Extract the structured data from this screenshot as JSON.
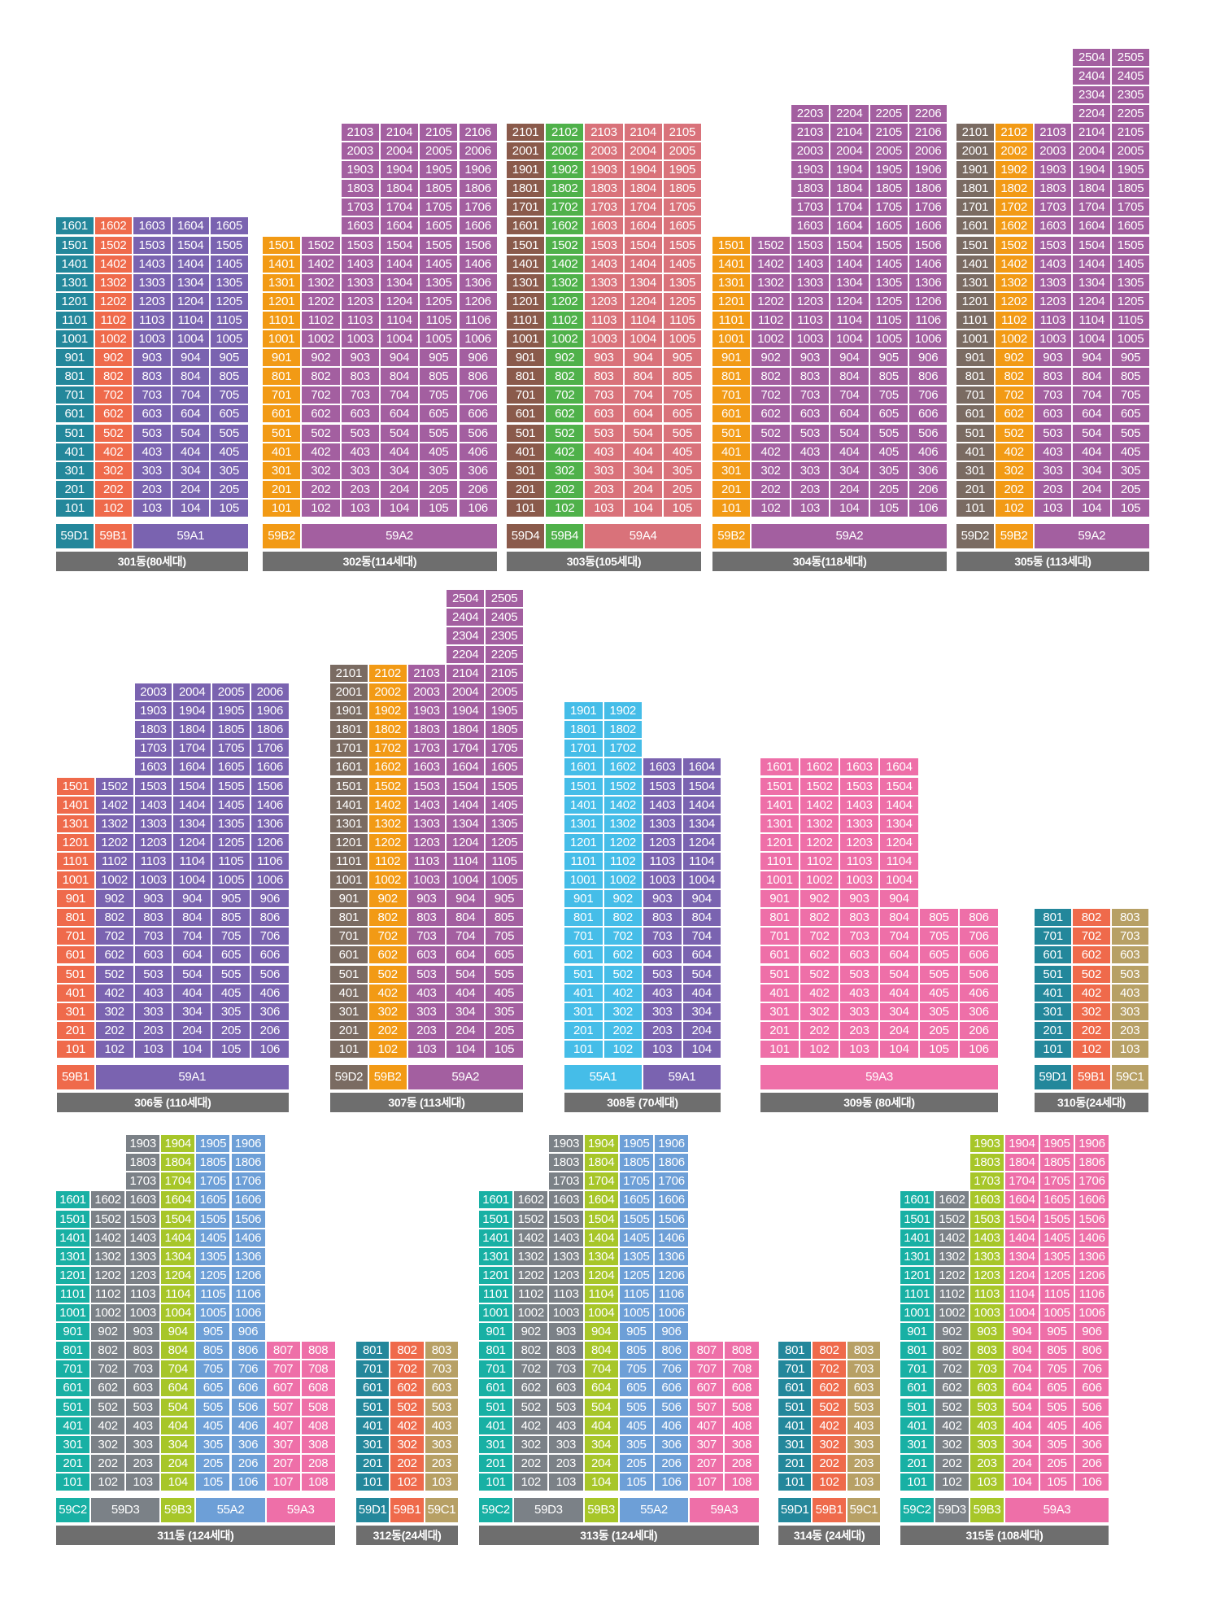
{
  "colors": {
    "59A1": "#7a63b0",
    "59A2": "#a35fa0",
    "59A3": "#ee6fa8",
    "59A4": "#d9727a",
    "59B1": "#ef6a4b",
    "59B2": "#f29a15",
    "59B3": "#a7c629",
    "59B4": "#4fb14a",
    "59C1": "#b7a065",
    "59C2": "#18b0a4",
    "59D1": "#23879b",
    "59D2": "#7a6b62",
    "59D3": "#7b8187",
    "59D4": "#8a5a4b",
    "55A1": "#45bde8",
    "55A2": "#6d9fd7",
    "label_bg": "#6e6e6e"
  },
  "buildings": [
    {
      "name": "301동(80세대)",
      "columns": [
        {
          "line": "01",
          "type": "59D1",
          "top": 16
        },
        {
          "line": "02",
          "type": "59B1",
          "top": 16
        },
        {
          "line": "03",
          "type": "59A1",
          "top": 16
        },
        {
          "line": "04",
          "type": "59A1",
          "top": 16
        },
        {
          "line": "05",
          "type": "59A1",
          "top": 16
        }
      ],
      "types": [
        {
          "name": "59D1",
          "span": 1
        },
        {
          "name": "59B1",
          "span": 1
        },
        {
          "name": "59A1",
          "span": 3
        }
      ]
    },
    {
      "name": "302동(114세대)",
      "columns": [
        {
          "line": "01",
          "type": "59B2",
          "top": 15
        },
        {
          "line": "02",
          "type": "59A2",
          "top": 15
        },
        {
          "line": "03",
          "type": "59A2",
          "top": 21
        },
        {
          "line": "04",
          "type": "59A2",
          "top": 21
        },
        {
          "line": "05",
          "type": "59A2",
          "top": 21
        },
        {
          "line": "06",
          "type": "59A2",
          "top": 21
        }
      ],
      "types": [
        {
          "name": "59B2",
          "span": 1
        },
        {
          "name": "59A2",
          "span": 5
        }
      ]
    },
    {
      "name": "303동(105세대)",
      "columns": [
        {
          "line": "01",
          "type": "59D4",
          "top": 21
        },
        {
          "line": "02",
          "type": "59B4",
          "top": 21
        },
        {
          "line": "03",
          "type": "59A4",
          "top": 21
        },
        {
          "line": "04",
          "type": "59A4",
          "top": 21
        },
        {
          "line": "05",
          "type": "59A4",
          "top": 21
        }
      ],
      "types": [
        {
          "name": "59D4",
          "span": 1
        },
        {
          "name": "59B4",
          "span": 1
        },
        {
          "name": "59A4",
          "span": 3
        }
      ]
    },
    {
      "name": "304동(118세대)",
      "columns": [
        {
          "line": "01",
          "type": "59B2",
          "top": 15
        },
        {
          "line": "02",
          "type": "59A2",
          "top": 15
        },
        {
          "line": "03",
          "type": "59A2",
          "top": 22
        },
        {
          "line": "04",
          "type": "59A2",
          "top": 22
        },
        {
          "line": "05",
          "type": "59A2",
          "top": 22
        },
        {
          "line": "06",
          "type": "59A2",
          "top": 22
        }
      ],
      "types": [
        {
          "name": "59B2",
          "span": 1
        },
        {
          "name": "59A2",
          "span": 5
        }
      ]
    },
    {
      "name": "305동 (113세대)",
      "columns": [
        {
          "line": "01",
          "type": "59D2",
          "top": 21
        },
        {
          "line": "02",
          "type": "59B2",
          "top": 21
        },
        {
          "line": "03",
          "type": "59A2",
          "top": 21
        },
        {
          "line": "04",
          "type": "59A2",
          "top": 25
        },
        {
          "line": "05",
          "type": "59A2",
          "top": 25
        }
      ],
      "types": [
        {
          "name": "59D2",
          "span": 1
        },
        {
          "name": "59B2",
          "span": 1
        },
        {
          "name": "59A2",
          "span": 3
        }
      ]
    },
    {
      "name": "306동 (110세대)",
      "columns": [
        {
          "line": "01",
          "type": "59B1",
          "top": 15
        },
        {
          "line": "02",
          "type": "59A1",
          "top": 15
        },
        {
          "line": "03",
          "type": "59A1",
          "top": 20
        },
        {
          "line": "04",
          "type": "59A1",
          "top": 20
        },
        {
          "line": "05",
          "type": "59A1",
          "top": 20
        },
        {
          "line": "06",
          "type": "59A1",
          "top": 20
        }
      ],
      "types": [
        {
          "name": "59B1",
          "span": 1
        },
        {
          "name": "59A1",
          "span": 5
        }
      ]
    },
    {
      "name": "307동 (113세대)",
      "columns": [
        {
          "line": "01",
          "type": "59D2",
          "top": 21
        },
        {
          "line": "02",
          "type": "59B2",
          "top": 21
        },
        {
          "line": "03",
          "type": "59A2",
          "top": 21
        },
        {
          "line": "04",
          "type": "59A2",
          "top": 25
        },
        {
          "line": "05",
          "type": "59A2",
          "top": 25
        }
      ],
      "types": [
        {
          "name": "59D2",
          "span": 1
        },
        {
          "name": "59B2",
          "span": 1
        },
        {
          "name": "59A2",
          "span": 3
        }
      ]
    },
    {
      "name": "308동 (70세대)",
      "columns": [
        {
          "line": "01",
          "type": "55A1",
          "top": 19
        },
        {
          "line": "02",
          "type": "55A1",
          "top": 19
        },
        {
          "line": "03",
          "type": "59A1",
          "top": 16
        },
        {
          "line": "04",
          "type": "59A1",
          "top": 16
        }
      ],
      "types": [
        {
          "name": "55A1",
          "span": 2
        },
        {
          "name": "59A1",
          "span": 2
        }
      ]
    },
    {
      "name": "309동 (80세대)",
      "columns": [
        {
          "line": "01",
          "type": "59A3",
          "top": 16
        },
        {
          "line": "02",
          "type": "59A3",
          "top": 16
        },
        {
          "line": "03",
          "type": "59A3",
          "top": 16
        },
        {
          "line": "04",
          "type": "59A3",
          "top": 16
        },
        {
          "line": "05",
          "type": "59A3",
          "top": 8
        },
        {
          "line": "06",
          "type": "59A3",
          "top": 8
        }
      ],
      "types": [
        {
          "name": "59A3",
          "span": 6
        }
      ]
    },
    {
      "name": "310동(24세대)",
      "columns": [
        {
          "line": "01",
          "type": "59D1",
          "top": 8
        },
        {
          "line": "02",
          "type": "59B1",
          "top": 8
        },
        {
          "line": "03",
          "type": "59C1",
          "top": 8
        }
      ],
      "types": [
        {
          "name": "59D1",
          "span": 1
        },
        {
          "name": "59B1",
          "span": 1
        },
        {
          "name": "59C1",
          "span": 1
        }
      ]
    },
    {
      "name": "311동 (124세대)",
      "columns": [
        {
          "line": "01",
          "type": "59C2",
          "top": 16
        },
        {
          "line": "02",
          "type": "59D3",
          "top": 16
        },
        {
          "line": "03",
          "type": "59D3",
          "top": 19
        },
        {
          "line": "04",
          "type": "59B3",
          "top": 19
        },
        {
          "line": "05",
          "type": "55A2",
          "top": 19
        },
        {
          "line": "06",
          "type": "55A2",
          "top": 19
        },
        {
          "line": "07",
          "type": "59A3",
          "top": 8
        },
        {
          "line": "08",
          "type": "59A3",
          "top": 8
        }
      ],
      "types": [
        {
          "name": "59C2",
          "span": 1
        },
        {
          "name": "59D3",
          "span": 2
        },
        {
          "name": "59B3",
          "span": 1
        },
        {
          "name": "55A2",
          "span": 2
        },
        {
          "name": "59A3",
          "span": 2
        }
      ]
    },
    {
      "name": "312동(24세대)",
      "columns": [
        {
          "line": "01",
          "type": "59D1",
          "top": 8
        },
        {
          "line": "02",
          "type": "59B1",
          "top": 8
        },
        {
          "line": "03",
          "type": "59C1",
          "top": 8
        }
      ],
      "types": [
        {
          "name": "59D1",
          "span": 1
        },
        {
          "name": "59B1",
          "span": 1
        },
        {
          "name": "59C1",
          "span": 1
        }
      ]
    },
    {
      "name": "313동 (124세대)",
      "columns": [
        {
          "line": "01",
          "type": "59C2",
          "top": 16
        },
        {
          "line": "02",
          "type": "59D3",
          "top": 16
        },
        {
          "line": "03",
          "type": "59D3",
          "top": 19
        },
        {
          "line": "04",
          "type": "59B3",
          "top": 19
        },
        {
          "line": "05",
          "type": "55A2",
          "top": 19
        },
        {
          "line": "06",
          "type": "55A2",
          "top": 19
        },
        {
          "line": "07",
          "type": "59A3",
          "top": 8
        },
        {
          "line": "08",
          "type": "59A3",
          "top": 8
        }
      ],
      "types": [
        {
          "name": "59C2",
          "span": 1
        },
        {
          "name": "59D3",
          "span": 2
        },
        {
          "name": "59B3",
          "span": 1
        },
        {
          "name": "55A2",
          "span": 2
        },
        {
          "name": "59A3",
          "span": 2
        }
      ]
    },
    {
      "name": "314동 (24세대)",
      "columns": [
        {
          "line": "01",
          "type": "59D1",
          "top": 8
        },
        {
          "line": "02",
          "type": "59B1",
          "top": 8
        },
        {
          "line": "03",
          "type": "59C1",
          "top": 8
        }
      ],
      "types": [
        {
          "name": "59D1",
          "span": 1
        },
        {
          "name": "59B1",
          "span": 1
        },
        {
          "name": "59C1",
          "span": 1
        }
      ]
    },
    {
      "name": "315동 (108세대)",
      "columns": [
        {
          "line": "01",
          "type": "59C2",
          "top": 16
        },
        {
          "line": "02",
          "type": "59D3",
          "top": 16
        },
        {
          "line": "03",
          "type": "59B3",
          "top": 19
        },
        {
          "line": "04",
          "type": "59A3",
          "top": 19
        },
        {
          "line": "05",
          "type": "59A3",
          "top": 19
        },
        {
          "line": "06",
          "type": "59A3",
          "top": 19
        }
      ],
      "types": [
        {
          "name": "59C2",
          "span": 1
        },
        {
          "name": "59D3",
          "span": 1
        },
        {
          "name": "59B3",
          "span": 1
        },
        {
          "name": "59A3",
          "span": 3
        }
      ]
    }
  ]
}
